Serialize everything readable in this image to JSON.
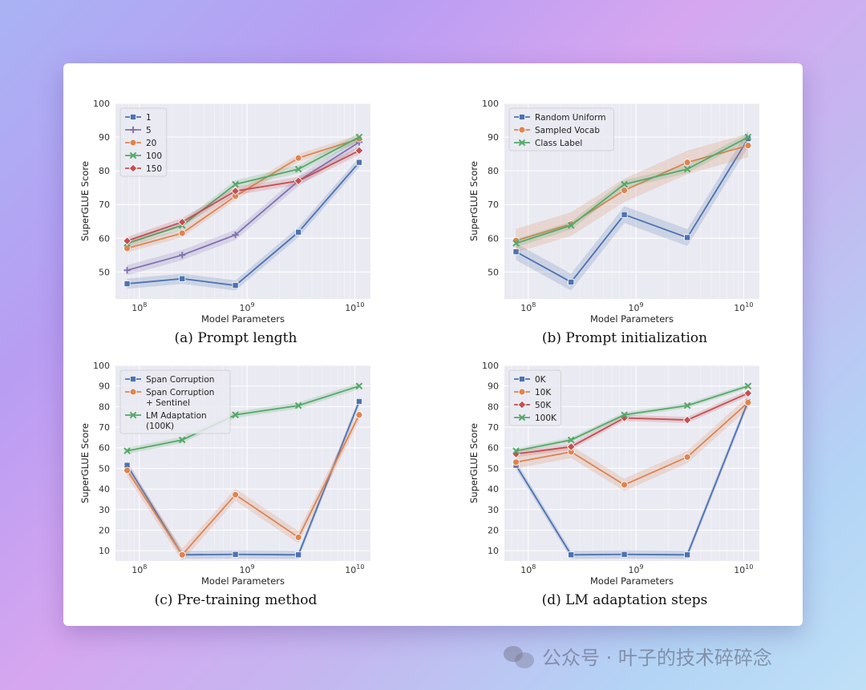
{
  "watermark": {
    "text": "公众号 · 叶子的技术碎碎念",
    "icon": "wechat-icon"
  },
  "colors": {
    "blue": "#4c72b0",
    "purple": "#8172b2",
    "orange": "#dd8452",
    "green": "#55a868",
    "red": "#c44e52",
    "plot_bg": "#eaeaf2"
  },
  "panels": [
    {
      "caption": "(a) Prompt length"
    },
    {
      "caption": "(b) Prompt initialization"
    },
    {
      "caption": "(c) Pre-training method"
    },
    {
      "caption": "(d) LM adaptation steps"
    }
  ],
  "chart_data": [
    {
      "type": "line",
      "title": "",
      "xlabel": "Model Parameters",
      "ylabel": "SuperGLUE Score",
      "xscale": "log",
      "xlim": [
        60000000,
        14000000000
      ],
      "ylim": [
        42,
        100
      ],
      "yticks": [
        50,
        60,
        70,
        80,
        90,
        100
      ],
      "xticks": [
        "10^8",
        "10^9",
        "10^10"
      ],
      "legend_position": "top-left",
      "x": [
        77000000,
        250000000,
        780000000,
        3000000000,
        11000000000
      ],
      "series": [
        {
          "name": "1",
          "color": "#4c72b0",
          "marker": "square",
          "values": [
            46.5,
            48,
            46,
            61.8,
            82.5
          ],
          "band": 1.5
        },
        {
          "name": "5",
          "color": "#8172b2",
          "marker": "plus",
          "values": [
            50.5,
            55,
            61,
            77,
            88.5
          ],
          "band": 1.5
        },
        {
          "name": "20",
          "color": "#dd8452",
          "marker": "circle",
          "values": [
            57,
            61.5,
            72.5,
            83.8,
            89.5
          ],
          "band": 1.2
        },
        {
          "name": "100",
          "color": "#55a868",
          "marker": "x",
          "values": [
            58.5,
            63.8,
            76,
            80.5,
            90
          ],
          "band": 1.2
        },
        {
          "name": "150",
          "color": "#c44e52",
          "marker": "diamond",
          "values": [
            59.2,
            64.8,
            74,
            77,
            86
          ],
          "band": 1.2
        }
      ]
    },
    {
      "type": "line",
      "title": "",
      "xlabel": "Model Parameters",
      "ylabel": "SuperGLUE Score",
      "xscale": "log",
      "xlim": [
        60000000,
        14000000000
      ],
      "ylim": [
        42,
        100
      ],
      "yticks": [
        50,
        60,
        70,
        80,
        90,
        100
      ],
      "xticks": [
        "10^8",
        "10^9",
        "10^10"
      ],
      "legend_position": "top-left",
      "x": [
        77000000,
        250000000,
        780000000,
        3000000000,
        11000000000
      ],
      "series": [
        {
          "name": "Random Uniform",
          "color": "#4c72b0",
          "marker": "square",
          "values": [
            56,
            47,
            67,
            60.2,
            89.5
          ],
          "band": 2.5
        },
        {
          "name": "Sampled Vocab",
          "color": "#dd8452",
          "marker": "circle",
          "values": [
            59.3,
            64.2,
            74.2,
            82.5,
            87.5
          ],
          "band": 3.5
        },
        {
          "name": "Class Label",
          "color": "#55a868",
          "marker": "x",
          "values": [
            58.5,
            63.8,
            76,
            80.5,
            90
          ],
          "band": 1.2
        }
      ]
    },
    {
      "type": "line",
      "title": "",
      "xlabel": "Model Parameters",
      "ylabel": "SuperGLUE Score",
      "xscale": "log",
      "xlim": [
        60000000,
        14000000000
      ],
      "ylim": [
        5,
        100
      ],
      "yticks": [
        10,
        20,
        30,
        40,
        50,
        60,
        70,
        80,
        90,
        100
      ],
      "xticks": [
        "10^8",
        "10^9",
        "10^10"
      ],
      "legend_position": "top-left",
      "x": [
        77000000,
        250000000,
        780000000,
        3000000000,
        11000000000
      ],
      "series": [
        {
          "name": "Span Corruption",
          "color": "#4c72b0",
          "marker": "square",
          "values": [
            51.5,
            8,
            8.2,
            8,
            82.5
          ],
          "band": 2
        },
        {
          "name": "Span Corruption\n+ Sentinel",
          "color": "#dd8452",
          "marker": "circle",
          "values": [
            49,
            8,
            37.2,
            16.5,
            76
          ],
          "band": 3
        },
        {
          "name": "LM Adaptation\n(100K)",
          "color": "#55a868",
          "marker": "x",
          "values": [
            58.5,
            63.8,
            76,
            80.5,
            90
          ],
          "band": 1.5
        }
      ]
    },
    {
      "type": "line",
      "title": "",
      "xlabel": "Model Parameters",
      "ylabel": "SuperGLUE Score",
      "xscale": "log",
      "xlim": [
        60000000,
        14000000000
      ],
      "ylim": [
        5,
        100
      ],
      "yticks": [
        10,
        20,
        30,
        40,
        50,
        60,
        70,
        80,
        90,
        100
      ],
      "xticks": [
        "10^8",
        "10^9",
        "10^10"
      ],
      "legend_position": "top-left",
      "x": [
        77000000,
        250000000,
        780000000,
        3000000000,
        11000000000
      ],
      "series": [
        {
          "name": "0K",
          "color": "#4c72b0",
          "marker": "square",
          "values": [
            51.5,
            8,
            8.2,
            8,
            82.5
          ],
          "band": 2
        },
        {
          "name": "10K",
          "color": "#dd8452",
          "marker": "circle",
          "values": [
            53,
            58,
            42,
            55.5,
            82
          ],
          "band": 3
        },
        {
          "name": "50K",
          "color": "#c44e52",
          "marker": "diamond",
          "values": [
            57,
            60.5,
            74.5,
            73.5,
            86.5
          ],
          "band": 1.5
        },
        {
          "name": "100K",
          "color": "#55a868",
          "marker": "x",
          "values": [
            58.5,
            63.8,
            76,
            80.5,
            90
          ],
          "band": 1.2
        }
      ]
    }
  ]
}
